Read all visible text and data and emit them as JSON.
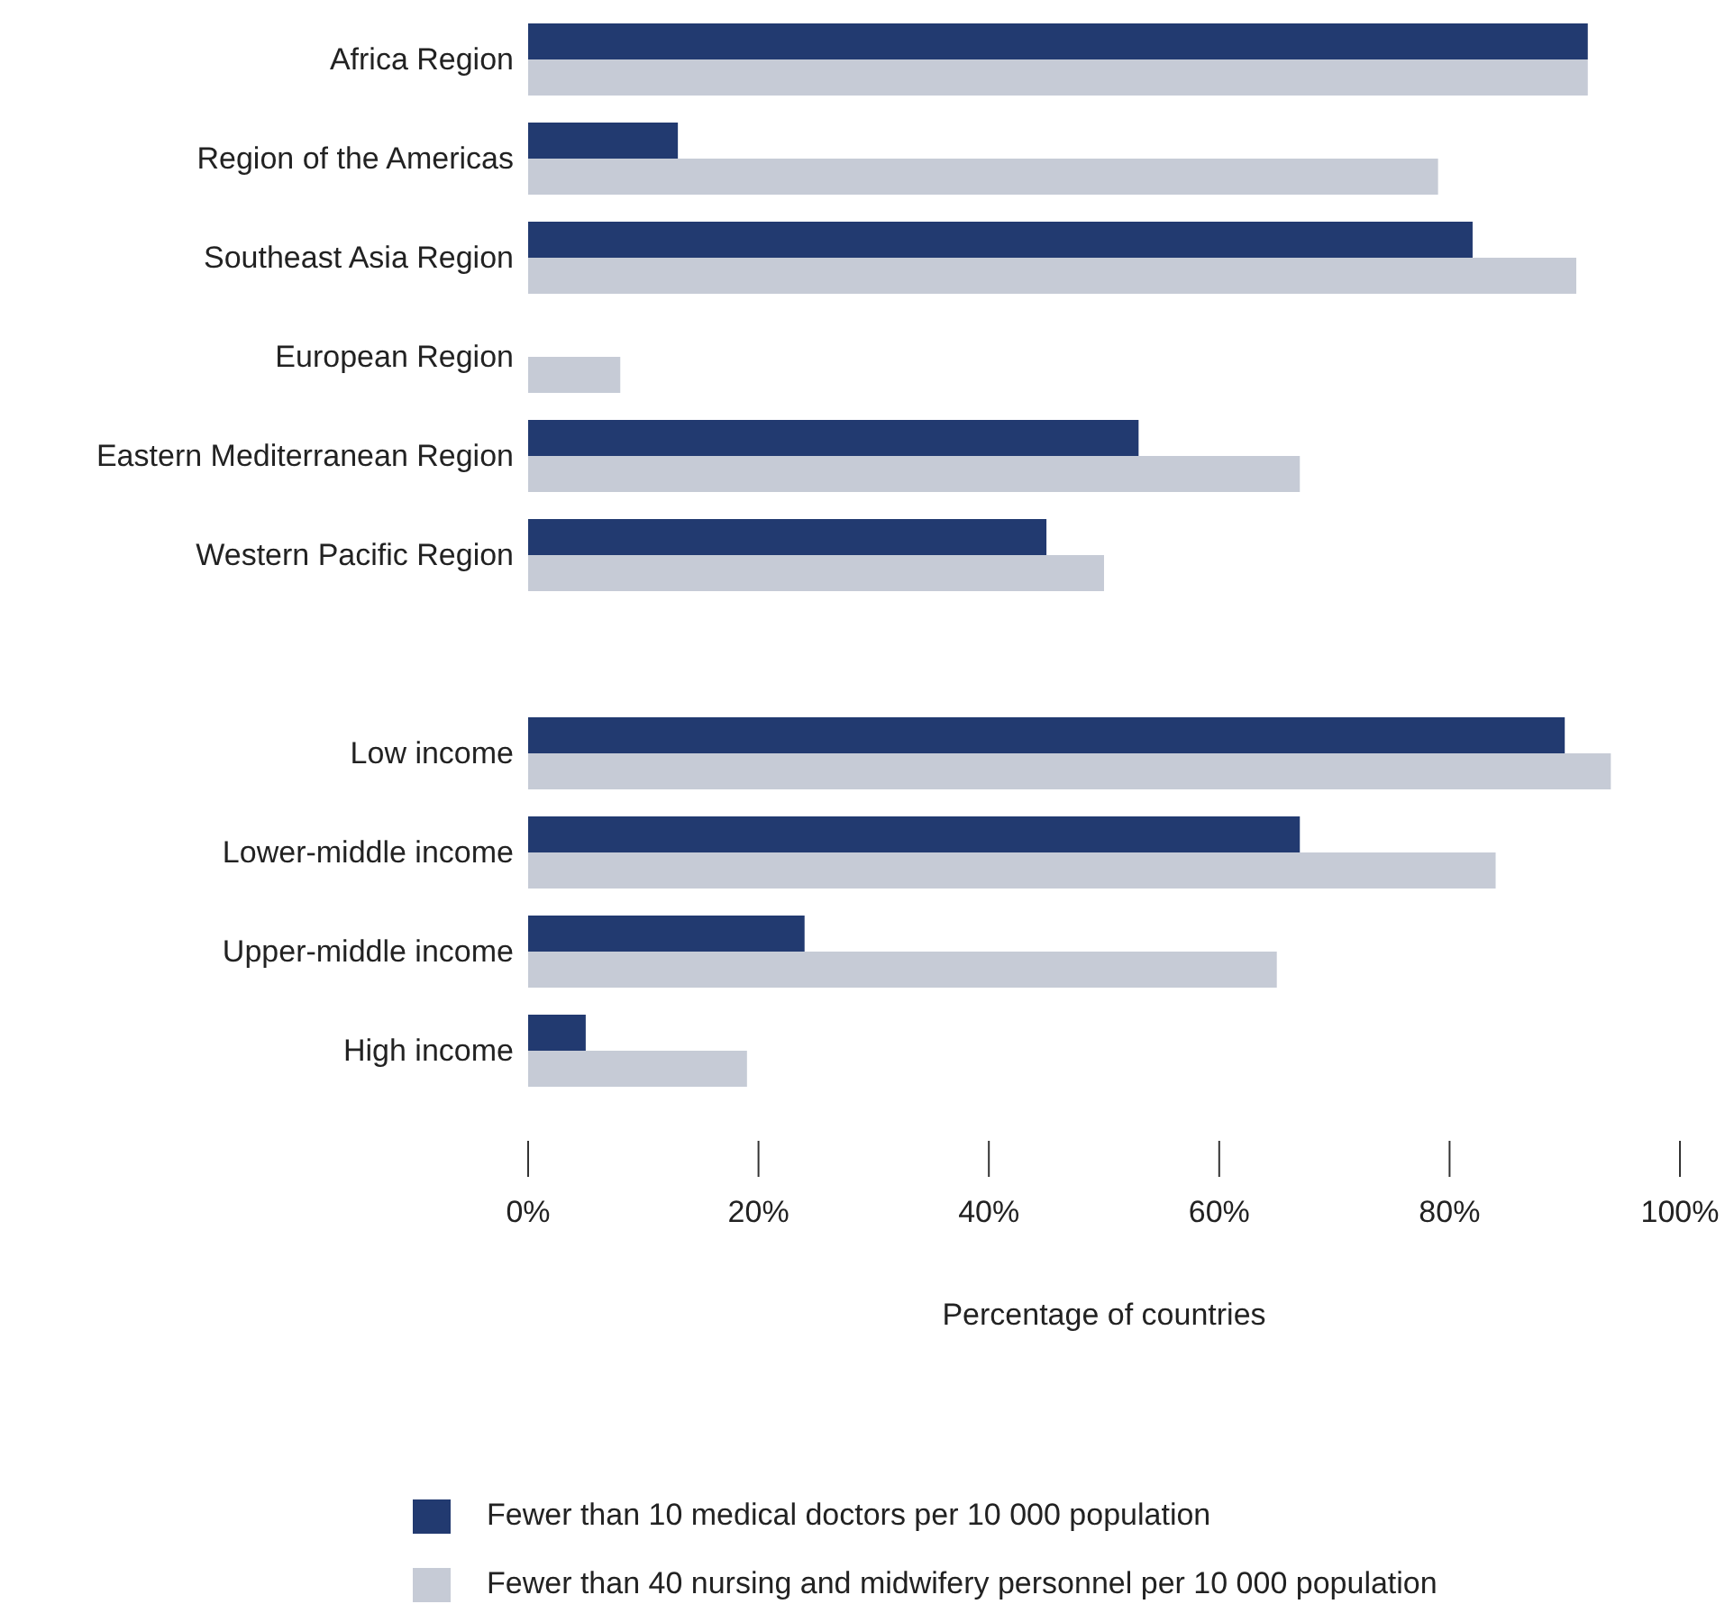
{
  "chart_data": {
    "type": "bar",
    "orientation": "horizontal",
    "xlabel": "Percentage of countries",
    "categories": [
      "Africa Region",
      "Region of the Americas",
      "Southeast Asia Region",
      "European Region",
      "Eastern Mediterranean Region",
      "Western Pacific Region",
      null,
      "Low income",
      "Lower-middle income",
      "Upper-middle income",
      "High income"
    ],
    "series": [
      {
        "name": "Fewer than 10 medical doctors per 10 000 population",
        "color": "#223a70",
        "values": [
          92,
          13,
          82,
          0,
          53,
          45,
          null,
          90,
          67,
          24,
          5
        ]
      },
      {
        "name": "Fewer than 40 nursing and midwifery personnel per 10 000 population",
        "color": "#c6cbd6",
        "values": [
          92,
          79,
          91,
          8,
          67,
          50,
          null,
          94,
          84,
          65,
          19
        ]
      }
    ],
    "xlim": [
      0,
      100
    ],
    "xticks": [
      {
        "value": 0,
        "label": "0%"
      },
      {
        "value": 20,
        "label": "20%"
      },
      {
        "value": 40,
        "label": "40%"
      },
      {
        "value": 60,
        "label": "60%"
      },
      {
        "value": 80,
        "label": "80%"
      },
      {
        "value": 100,
        "label": "100%"
      }
    ],
    "legend": "bottom"
  }
}
